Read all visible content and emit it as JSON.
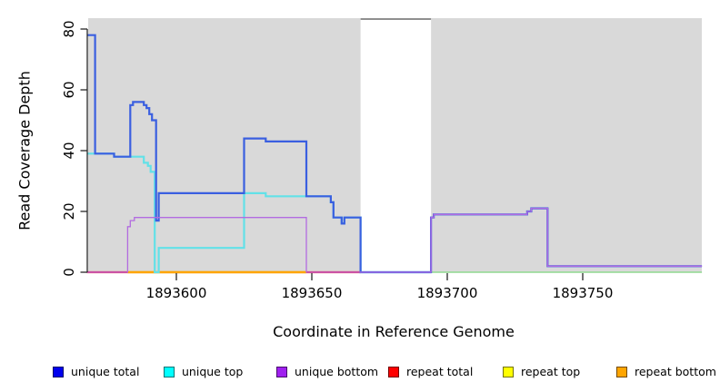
{
  "chart_data": {
    "type": "line",
    "subtype": "step",
    "title": "",
    "xlabel": "Coordinate in Reference Genome",
    "ylabel": "Read Coverage Depth",
    "xlim": [
      1893567,
      1893794
    ],
    "ylim": [
      0,
      80
    ],
    "grid": false,
    "plot_background": "#d9d9d9",
    "masked_region": {
      "x_start": 1893668,
      "x_end": 1893694,
      "fill": "#ffffff",
      "top_border": "#8f8f8f"
    },
    "x_ticks": {
      "values": [
        1893600,
        1893650,
        1893700,
        1893750
      ],
      "labels": [
        "1893600",
        "1893650",
        "1893700",
        "1893750"
      ]
    },
    "y_ticks": {
      "values": [
        0,
        20,
        40,
        60,
        80
      ],
      "labels": [
        "0",
        "20",
        "40",
        "60",
        "80"
      ]
    },
    "series": [
      {
        "name": "baseline green",
        "color": "#8fd98f",
        "width": 1.5,
        "x_end": 1893794,
        "points": [
          [
            1893694,
            0
          ]
        ]
      },
      {
        "name": "repeat total",
        "color": "#f02840",
        "width": 2.2,
        "x_end": 1893668,
        "points": [
          [
            1893567,
            0
          ]
        ]
      },
      {
        "name": "repeat top",
        "color": "#ffff00",
        "width": 2.2,
        "x_end": 1893648,
        "points": [
          [
            1893582,
            0
          ]
        ]
      },
      {
        "name": "repeat bottom",
        "color": "#ffa500",
        "width": 2.2,
        "x_end": 1893648,
        "points": [
          [
            1893582,
            0
          ]
        ]
      },
      {
        "name": "unique top",
        "color": "#62e1e8",
        "width": 2.2,
        "x_end": 1893694,
        "points": [
          [
            1893567,
            39
          ],
          [
            1893577,
            38
          ],
          [
            1893588,
            36
          ],
          [
            1893589.5,
            35
          ],
          [
            1893590.5,
            33
          ],
          [
            1893592,
            0
          ],
          [
            1893593.5,
            8
          ],
          [
            1893625,
            26
          ],
          [
            1893633,
            25
          ],
          [
            1893657,
            23
          ],
          [
            1893658,
            18
          ],
          [
            1893661,
            16
          ],
          [
            1893662,
            18
          ],
          [
            1893668,
            0
          ]
        ]
      },
      {
        "name": "unique total",
        "color": "#3a5fe0",
        "width": 2.2,
        "x_end": 1893794,
        "points": [
          [
            1893567,
            78
          ],
          [
            1893570,
            39
          ],
          [
            1893577,
            38
          ],
          [
            1893583,
            55
          ],
          [
            1893584,
            56
          ],
          [
            1893588,
            55
          ],
          [
            1893589,
            54
          ],
          [
            1893590,
            52
          ],
          [
            1893591,
            50
          ],
          [
            1893592.5,
            17
          ],
          [
            1893593.5,
            26
          ],
          [
            1893625,
            44
          ],
          [
            1893633,
            43
          ],
          [
            1893648,
            25
          ],
          [
            1893657,
            23
          ],
          [
            1893658,
            18
          ],
          [
            1893661,
            16
          ],
          [
            1893662,
            18
          ],
          [
            1893668,
            0
          ],
          [
            1893694,
            18
          ],
          [
            1893695,
            19
          ],
          [
            1893729.5,
            20
          ],
          [
            1893731,
            21
          ],
          [
            1893737,
            2
          ]
        ]
      },
      {
        "name": "unique bottom",
        "color": "#b26be0",
        "width": 1.3,
        "x_end": 1893794,
        "points": [
          [
            1893567,
            0
          ],
          [
            1893582,
            15
          ],
          [
            1893583,
            17
          ],
          [
            1893584.5,
            18
          ],
          [
            1893648,
            0
          ],
          [
            1893694,
            18
          ],
          [
            1893695,
            19
          ],
          [
            1893729.5,
            20
          ],
          [
            1893731,
            21
          ],
          [
            1893737,
            2
          ]
        ]
      }
    ]
  },
  "legend": {
    "items": [
      {
        "label": "unique total",
        "color": "#0000ee"
      },
      {
        "label": "unique top",
        "color": "#00ffff"
      },
      {
        "label": "unique bottom",
        "color": "#a020f0"
      },
      {
        "label": "repeat total",
        "color": "#ff0000"
      },
      {
        "label": "repeat top",
        "color": "#ffff00"
      },
      {
        "label": "repeat bottom",
        "color": "#ffa500"
      }
    ]
  }
}
